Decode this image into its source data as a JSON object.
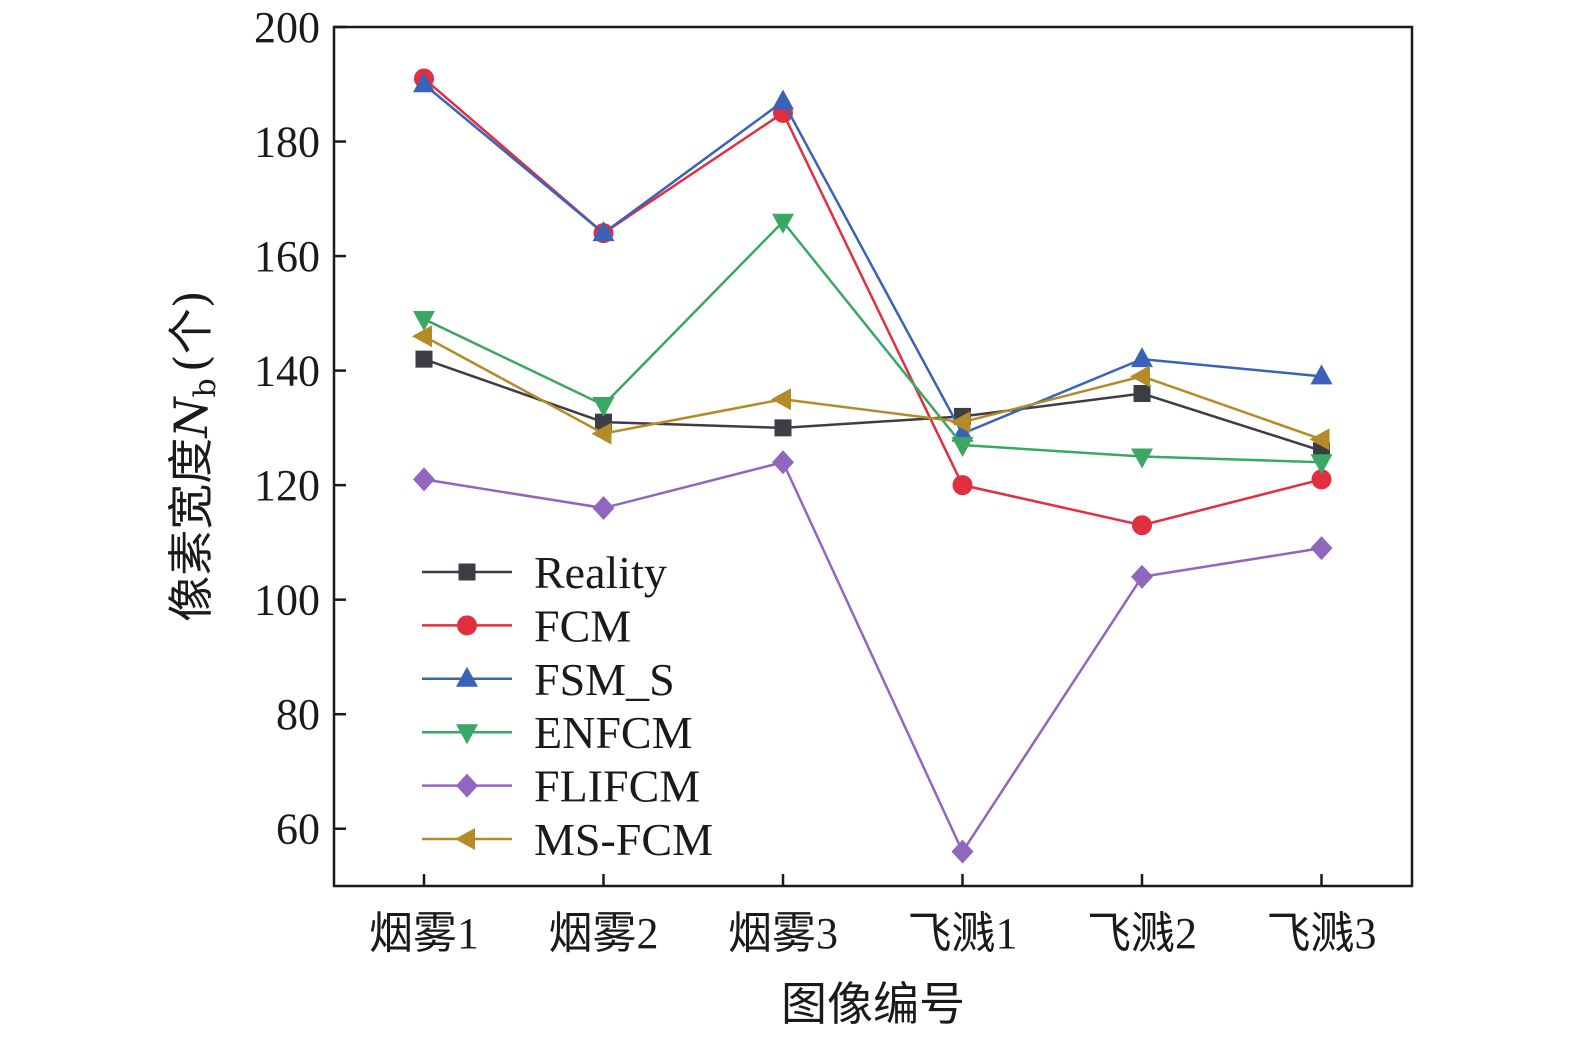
{
  "chart_data": {
    "type": "line",
    "xlabel": "图像编号",
    "ylabel_main": "像素宽度",
    "ylabel_symbol": "N",
    "ylabel_subscript": "b",
    "ylabel_unit": "(个)",
    "categories": [
      "烟雾1",
      "烟雾2",
      "烟雾3",
      "飞溅1",
      "飞溅2",
      "飞溅3"
    ],
    "ylim": [
      50,
      200
    ],
    "yticks": [
      60,
      80,
      100,
      120,
      140,
      160,
      180,
      200
    ],
    "grid": false,
    "legend_position": "bottom-left",
    "series": [
      {
        "name": "Reality",
        "color": "#3d3d45",
        "marker": "square",
        "values": [
          142,
          131,
          130,
          132,
          136,
          126
        ]
      },
      {
        "name": "FCM",
        "color": "#e0303f",
        "marker": "circle",
        "values": [
          191,
          164,
          185,
          120,
          113,
          121
        ]
      },
      {
        "name": "FSM_S",
        "color": "#3a62b8",
        "marker": "triangle-up",
        "values": [
          190,
          164,
          187,
          129,
          142,
          139
        ]
      },
      {
        "name": "ENFCM",
        "color": "#3aa864",
        "marker": "triangle-down",
        "values": [
          149,
          134,
          166,
          127,
          125,
          124
        ]
      },
      {
        "name": "FLIFCM",
        "color": "#9166bf",
        "marker": "diamond",
        "values": [
          121,
          116,
          124,
          56,
          104,
          109
        ]
      },
      {
        "name": "MS-FCM",
        "color": "#b58b28",
        "marker": "triangle-left",
        "values": [
          146,
          129,
          135,
          131,
          139,
          128
        ]
      }
    ]
  }
}
